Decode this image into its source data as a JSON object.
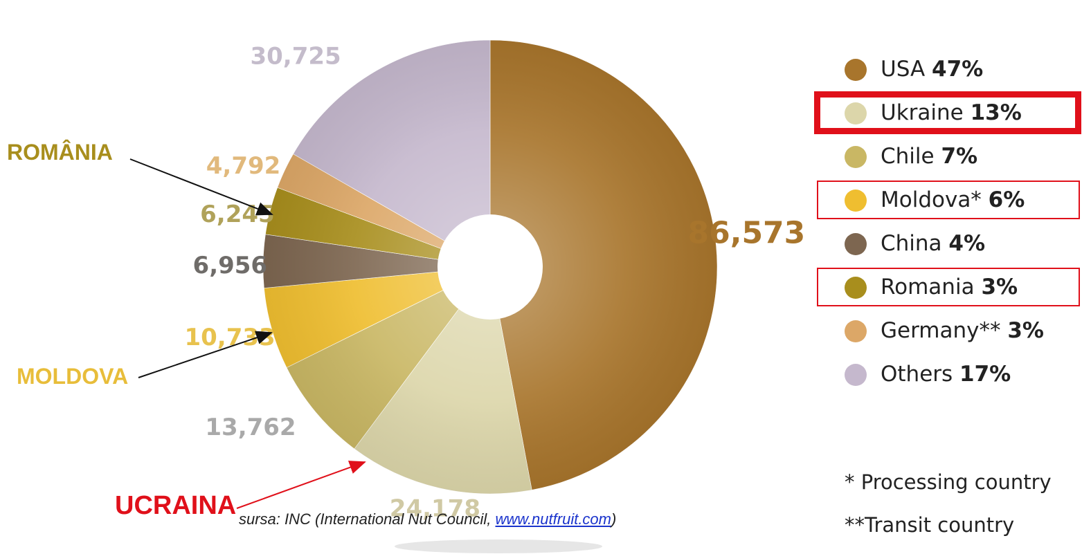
{
  "chart_data": {
    "type": "pie",
    "style": "donut",
    "categories": [
      "USA",
      "Ukraine",
      "Chile",
      "Moldova*",
      "China",
      "Romania",
      "Germany**",
      "Others"
    ],
    "values": [
      86573,
      24178,
      13762,
      10733,
      6956,
      6245,
      4792,
      30725
    ],
    "value_labels": [
      "86,573",
      "24,178",
      "13,762",
      "10,733",
      "6,956",
      "6,245",
      "4,792",
      "30,725"
    ],
    "colors": [
      "#a8752c",
      "#dcd6aa",
      "#c9b764",
      "#efbe30",
      "#7d6650",
      "#a88e1d",
      "#dca767",
      "#c5b8cd"
    ],
    "title": ""
  },
  "legend": {
    "items": [
      {
        "name": "USA",
        "pct": "47%",
        "color": "#a8752c",
        "highlight": "none"
      },
      {
        "name": "Ukraine",
        "pct": "13%",
        "color": "#dcd6aa",
        "highlight": "thick"
      },
      {
        "name": "Chile",
        "pct": "7%",
        "color": "#c9b764",
        "highlight": "none"
      },
      {
        "name": "Moldova*",
        "pct": "6%",
        "color": "#efbe30",
        "highlight": "thin"
      },
      {
        "name": "China",
        "pct": "4%",
        "color": "#7d6650",
        "highlight": "none"
      },
      {
        "name": "Romania",
        "pct": "3%",
        "color": "#a88e1d",
        "highlight": "thin"
      },
      {
        "name": "Germany**",
        "pct": "3%",
        "color": "#dca767",
        "highlight": "none"
      },
      {
        "name": "Others",
        "pct": "17%",
        "color": "#c5b8cd",
        "highlight": "none"
      }
    ],
    "note_processing": "* Processing country",
    "note_transit": "**Transit country"
  },
  "callouts": {
    "romania": "ROMÂNIA",
    "moldova": "MOLDOVA",
    "ucraina": "UCRAINA"
  },
  "source": {
    "prefix": "sursa: INC (International Nut Council, ",
    "link": "www.nutfruit.com",
    "suffix": ")"
  }
}
